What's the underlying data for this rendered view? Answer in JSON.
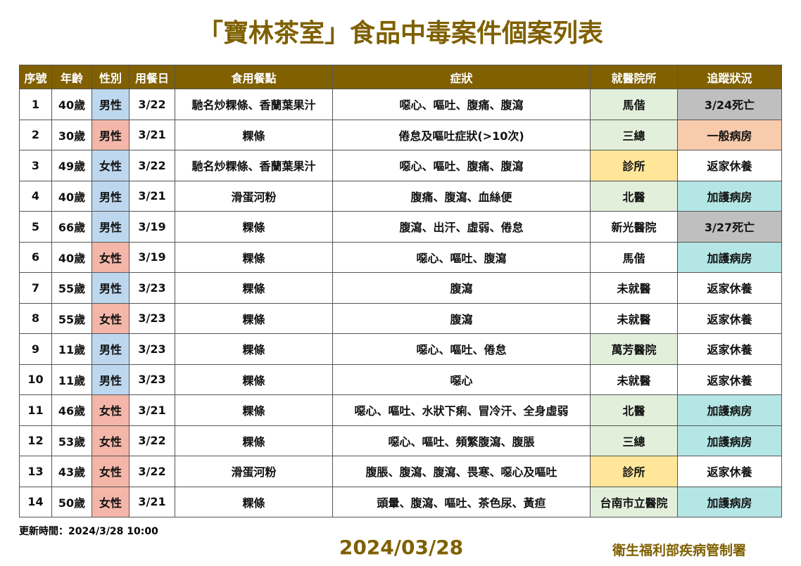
{
  "title": "「寶林茶室」食品中毒案件個案列表",
  "table": {
    "headers": [
      "序號",
      "年齡",
      "性別",
      "用餐日",
      "食用餐點",
      "症狀",
      "就醫院所",
      "追蹤狀況"
    ],
    "rows": [
      [
        "1",
        "40歲",
        "男性",
        "3/22",
        "馳名炒粿條、香蘭葉果汁",
        "噁心、嘔吐、腹痛、腹瀉",
        "馬偕",
        "3/24死亡"
      ],
      [
        "2",
        "30歲",
        "男性",
        "3/21",
        "粿條",
        "倦怠及嘔吐症狀(>10次)",
        "三總",
        "一般病房"
      ],
      [
        "3",
        "49歲",
        "女性",
        "3/22",
        "馳名炒粿條、香蘭葉果汁",
        "噁心、嘔吐、腹痛、腹瀉",
        "診所",
        "返家休養"
      ],
      [
        "4",
        "40歲",
        "男性",
        "3/21",
        "滑蛋河粉",
        "腹痛、腹瀉、血絲便",
        "北醫",
        "加護病房"
      ],
      [
        "5",
        "66歲",
        "男性",
        "3/19",
        "粿條",
        "腹瀉、出汗、虛弱、倦怠",
        "新光醫院",
        "3/27死亡"
      ],
      [
        "6",
        "40歲",
        "女性",
        "3/19",
        "粿條",
        "噁心、嘔吐、腹瀉",
        "馬偕",
        "加護病房"
      ],
      [
        "7",
        "55歲",
        "男性",
        "3/23",
        "粿條",
        "腹瀉",
        "未就醫",
        "返家休養"
      ],
      [
        "8",
        "55歲",
        "女性",
        "3/23",
        "粿條",
        "腹瀉",
        "未就醫",
        "返家休養"
      ],
      [
        "9",
        "11歲",
        "男性",
        "3/23",
        "粿條",
        "噁心、嘔吐、倦怠",
        "萬芳醫院",
        "返家休養"
      ],
      [
        "10",
        "11歲",
        "男性",
        "3/23",
        "粿條",
        "噁心",
        "未就醫",
        "返家休養"
      ],
      [
        "11",
        "46歲",
        "女性",
        "3/21",
        "粿條",
        "噁心、嘔吐、水狀下痢、冒冷汗、全身虛弱",
        "北醫",
        "加護病房"
      ],
      [
        "12",
        "53歲",
        "女性",
        "3/22",
        "粿條",
        "噁心、嘔吐、頻繁腹瀉、腹脹",
        "三總",
        "加護病房"
      ],
      [
        "13",
        "43歲",
        "女性",
        "3/22",
        "滑蛋河粉",
        "腹脹、腹瀉、腹瀉、畏寒、噁心及嘔吐",
        "診所",
        "返家休養"
      ],
      [
        "14",
        "50歲",
        "女性",
        "3/21",
        "粿條",
        "頭暈、腹瀉、嘔吐、茶色尿、黃疸",
        "台南市立醫院",
        "加護病房"
      ]
    ]
  },
  "footer": {
    "updated": "更新時間：2024/3/28 10:00",
    "date": "2024/03/28",
    "agency": "衛生福利部疾病管制署"
  }
}
